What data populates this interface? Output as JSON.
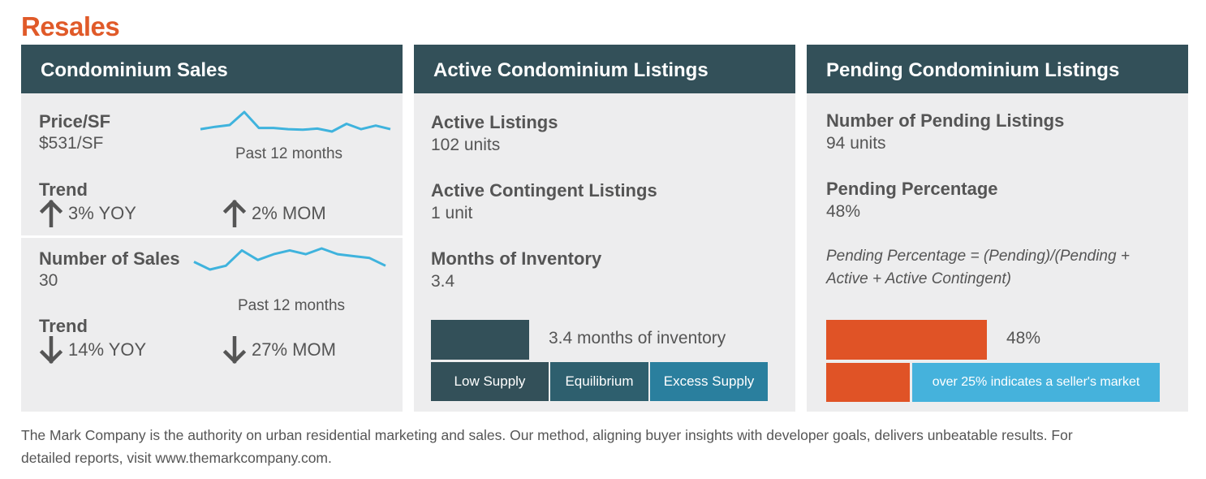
{
  "title": "Resales",
  "panel1": {
    "header": "Condominium Sales",
    "price": {
      "label": "Price/SF",
      "value": "$531/SF",
      "spark_caption": "Past 12 months",
      "spark_values": [
        531,
        535,
        538,
        560,
        533,
        533,
        531,
        530,
        532,
        527,
        540,
        531,
        537,
        531
      ],
      "trend_label": "Trend",
      "yoy": "3% YOY",
      "mom": "2% MOM",
      "yoy_dir": "up",
      "mom_dir": "up"
    },
    "sales": {
      "label": "Number of Sales",
      "value": "30",
      "spark_caption": "Past 12 months",
      "spark_values": [
        30,
        26,
        28,
        36,
        31,
        34,
        36,
        34,
        37,
        34,
        33,
        32,
        28
      ],
      "trend_label": "Trend",
      "yoy": "14% YOY",
      "mom": "27% MOM",
      "yoy_dir": "down",
      "mom_dir": "down"
    }
  },
  "panel2": {
    "header": "Active Condominium Listings",
    "active_label": "Active Listings",
    "active_value": "102 units",
    "contingent_label": "Active Contingent Listings",
    "contingent_value": "1 unit",
    "months_label": "Months of Inventory",
    "months_value": "3.4",
    "inventory_months": 3.4,
    "bar_caption": "3.4 months of inventory",
    "scale": [
      "Low Supply",
      "Equilibrium",
      "Excess Supply"
    ],
    "scale_colors": [
      "#335059",
      "#2e5f6e",
      "#2a7f9e"
    ]
  },
  "panel3": {
    "header": "Pending Condominium Listings",
    "pending_label": "Number of Pending Listings",
    "pending_value": "94 units",
    "pct_label": "Pending Percentage",
    "pct_value": "48%",
    "formula": "Pending Percentage = (Pending)/(Pending + Active + Active Contingent)",
    "bar_pct": 48,
    "bar_caption": "48%",
    "threshold_pct": 25,
    "threshold_caption": "over 25% indicates a seller's market",
    "accent": "#e05326",
    "cyan": "#45b2dc"
  },
  "footer": "The Mark Company is the authority on urban residential marketing and sales. Our method, aligning buyer insights with developer goals, delivers unbeatable results.  For detailed reports, visit www.themarkcompany.com."
}
